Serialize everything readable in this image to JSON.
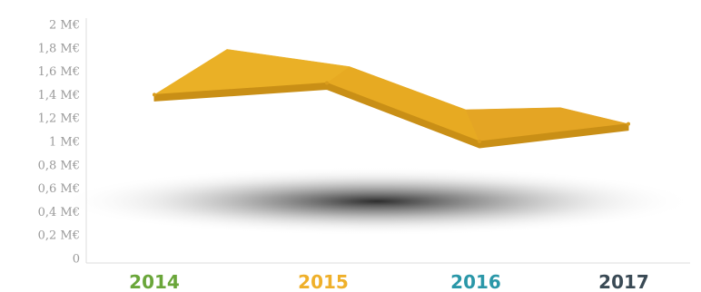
{
  "chart_data": {
    "type": "area",
    "title": "",
    "xlabel": "",
    "ylabel": "",
    "categories": [
      "2014",
      "2015",
      "2016",
      "2017"
    ],
    "series": [
      {
        "values": [
          1.4,
          1.5,
          1.0,
          1.15
        ]
      }
    ],
    "yticks": [
      "2 M€",
      "1,8 M€",
      "1,6 M€",
      "1,4 M€",
      "1,2 M€",
      "1 M€",
      "0,8 M€",
      "0,6 M€",
      "0,4 M€",
      "0,2 M€",
      "0"
    ],
    "ylim": [
      0,
      2
    ],
    "unit": "M€",
    "category_colors": [
      "#6aa63a",
      "#efb02a",
      "#2a97a8",
      "#3a4a55"
    ],
    "band_color": "#e8a823",
    "grid": false
  }
}
